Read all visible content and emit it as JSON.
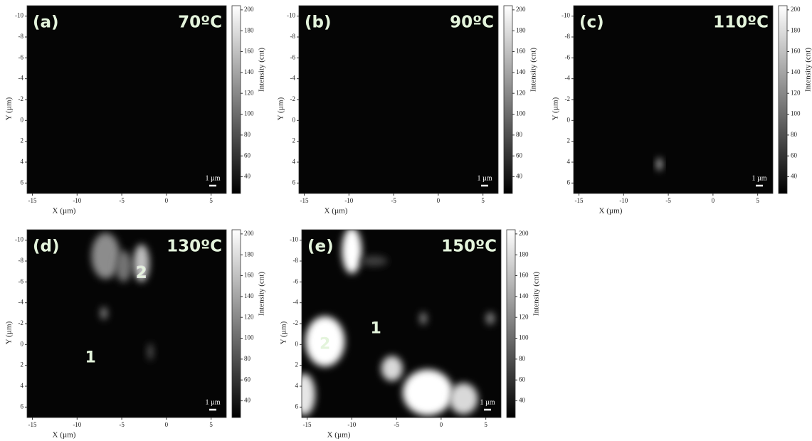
{
  "chart_data": [
    {
      "type": "heatmap",
      "panel_label": "(a)",
      "temperature": "70ºC",
      "xlabel": "X (µm)",
      "ylabel": "Y (µm)",
      "xlim": [
        -15.6,
        6.7
      ],
      "xticks": [
        -15,
        -10,
        -5,
        0,
        5
      ],
      "ylim": [
        -11,
        7
      ],
      "yticks": [
        -10,
        -8,
        -6,
        -4,
        -2,
        0,
        2,
        4,
        6
      ],
      "y_inverted": true,
      "colorbar_label": "Intensity (cnt)",
      "clim": [
        24,
        204
      ],
      "cticks": [
        40,
        60,
        80,
        100,
        120,
        140,
        160,
        180,
        200
      ],
      "scale_bar": "1 µm"
    },
    {
      "type": "heatmap",
      "panel_label": "(b)",
      "temperature": "90ºC",
      "xlabel": "X (µm)",
      "ylabel": "Y (µm)",
      "xlim": [
        -15.6,
        6.7
      ],
      "xticks": [
        -15,
        -10,
        -5,
        0,
        5
      ],
      "ylim": [
        -11,
        7
      ],
      "yticks": [
        -10,
        -8,
        -6,
        -4,
        -2,
        0,
        2,
        4,
        6
      ],
      "y_inverted": true,
      "colorbar_label": "Intensity (cnt)",
      "clim": [
        24,
        204
      ],
      "cticks": [
        40,
        60,
        80,
        100,
        120,
        140,
        160,
        180,
        200
      ],
      "scale_bar": "1 µm"
    },
    {
      "type": "heatmap",
      "panel_label": "(c)",
      "temperature": "110ºC",
      "xlabel": "X (µm)",
      "ylabel": "Y (µm)",
      "xlim": [
        -15.6,
        6.7
      ],
      "xticks": [
        -15,
        -10,
        -5,
        0,
        5
      ],
      "ylim": [
        -11,
        7
      ],
      "yticks": [
        -10,
        -8,
        -6,
        -4,
        -2,
        0,
        2,
        4,
        6
      ],
      "y_inverted": true,
      "colorbar_label": "Intensity (cnt)",
      "clim": [
        24,
        204
      ],
      "cticks": [
        40,
        60,
        80,
        100,
        120,
        140,
        160,
        180,
        200
      ],
      "scale_bar": "1 µm"
    },
    {
      "type": "heatmap",
      "panel_label": "(d)",
      "temperature": "130ºC",
      "xlabel": "X (µm)",
      "ylabel": "Y (µm)",
      "xlim": [
        -15.6,
        6.7
      ],
      "xticks": [
        -15,
        -10,
        -5,
        0,
        5
      ],
      "ylim": [
        -11,
        7
      ],
      "yticks": [
        -10,
        -8,
        -6,
        -4,
        -2,
        0,
        2,
        4,
        6
      ],
      "y_inverted": true,
      "colorbar_label": "Intensity (cnt)",
      "clim": [
        24,
        204
      ],
      "cticks": [
        40,
        60,
        80,
        100,
        120,
        140,
        160,
        180,
        200
      ],
      "scale_bar": "1 µm",
      "annotations": [
        "1",
        "2"
      ]
    },
    {
      "type": "heatmap",
      "panel_label": "(e)",
      "temperature": "150ºC",
      "xlabel": "X (µm)",
      "ylabel": "Y (µm)",
      "xlim": [
        -15.6,
        6.7
      ],
      "xticks": [
        -15,
        -10,
        -5,
        0,
        5
      ],
      "ylim": [
        -11,
        7
      ],
      "yticks": [
        -10,
        -8,
        -6,
        -4,
        -2,
        0,
        2,
        4,
        6
      ],
      "y_inverted": true,
      "colorbar_label": "Intensity (cnt)",
      "clim": [
        24,
        204
      ],
      "cticks": [
        40,
        60,
        80,
        100,
        120,
        140,
        160,
        180,
        200
      ],
      "scale_bar": "1 µm",
      "annotations": [
        "1",
        "2"
      ]
    }
  ]
}
